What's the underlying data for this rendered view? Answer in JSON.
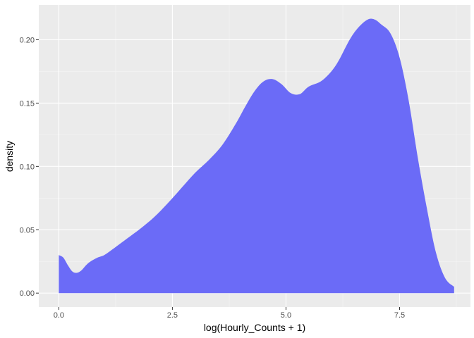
{
  "chart_data": {
    "type": "area",
    "title": "",
    "xlabel": "log(Hourly_Counts + 1)",
    "ylabel": "density",
    "xlim": [
      -0.44,
      9.06
    ],
    "ylim": [
      -0.011,
      0.2275
    ],
    "x_ticks": [
      0.0,
      2.5,
      5.0,
      7.5
    ],
    "x_tick_labels": [
      "0.0",
      "2.5",
      "5.0",
      "7.5"
    ],
    "y_ticks": [
      0.0,
      0.05,
      0.1,
      0.15,
      0.2
    ],
    "y_tick_labels": [
      "0.00",
      "0.05",
      "0.10",
      "0.15",
      "0.20"
    ],
    "grid": true,
    "fill_color": "#6b6bf7",
    "panel_color": "#ebebeb",
    "series": [
      {
        "name": "density",
        "x": [
          0.0,
          0.1,
          0.2,
          0.3,
          0.4,
          0.5,
          0.6,
          0.7,
          0.85,
          1.0,
          1.2,
          1.5,
          1.8,
          2.1,
          2.4,
          2.7,
          3.0,
          3.3,
          3.6,
          3.9,
          4.1,
          4.3,
          4.5,
          4.7,
          4.9,
          5.1,
          5.3,
          5.5,
          5.8,
          6.1,
          6.4,
          6.6,
          6.8,
          6.95,
          7.1,
          7.3,
          7.5,
          7.7,
          7.9,
          8.1,
          8.3,
          8.5,
          8.7
        ],
        "y": [
          0.03,
          0.028,
          0.022,
          0.017,
          0.016,
          0.018,
          0.022,
          0.025,
          0.028,
          0.03,
          0.035,
          0.043,
          0.051,
          0.06,
          0.071,
          0.083,
          0.095,
          0.105,
          0.117,
          0.134,
          0.147,
          0.159,
          0.167,
          0.169,
          0.165,
          0.158,
          0.157,
          0.163,
          0.168,
          0.18,
          0.2,
          0.21,
          0.216,
          0.216,
          0.212,
          0.205,
          0.186,
          0.152,
          0.107,
          0.067,
          0.032,
          0.012,
          0.005
        ]
      }
    ]
  }
}
